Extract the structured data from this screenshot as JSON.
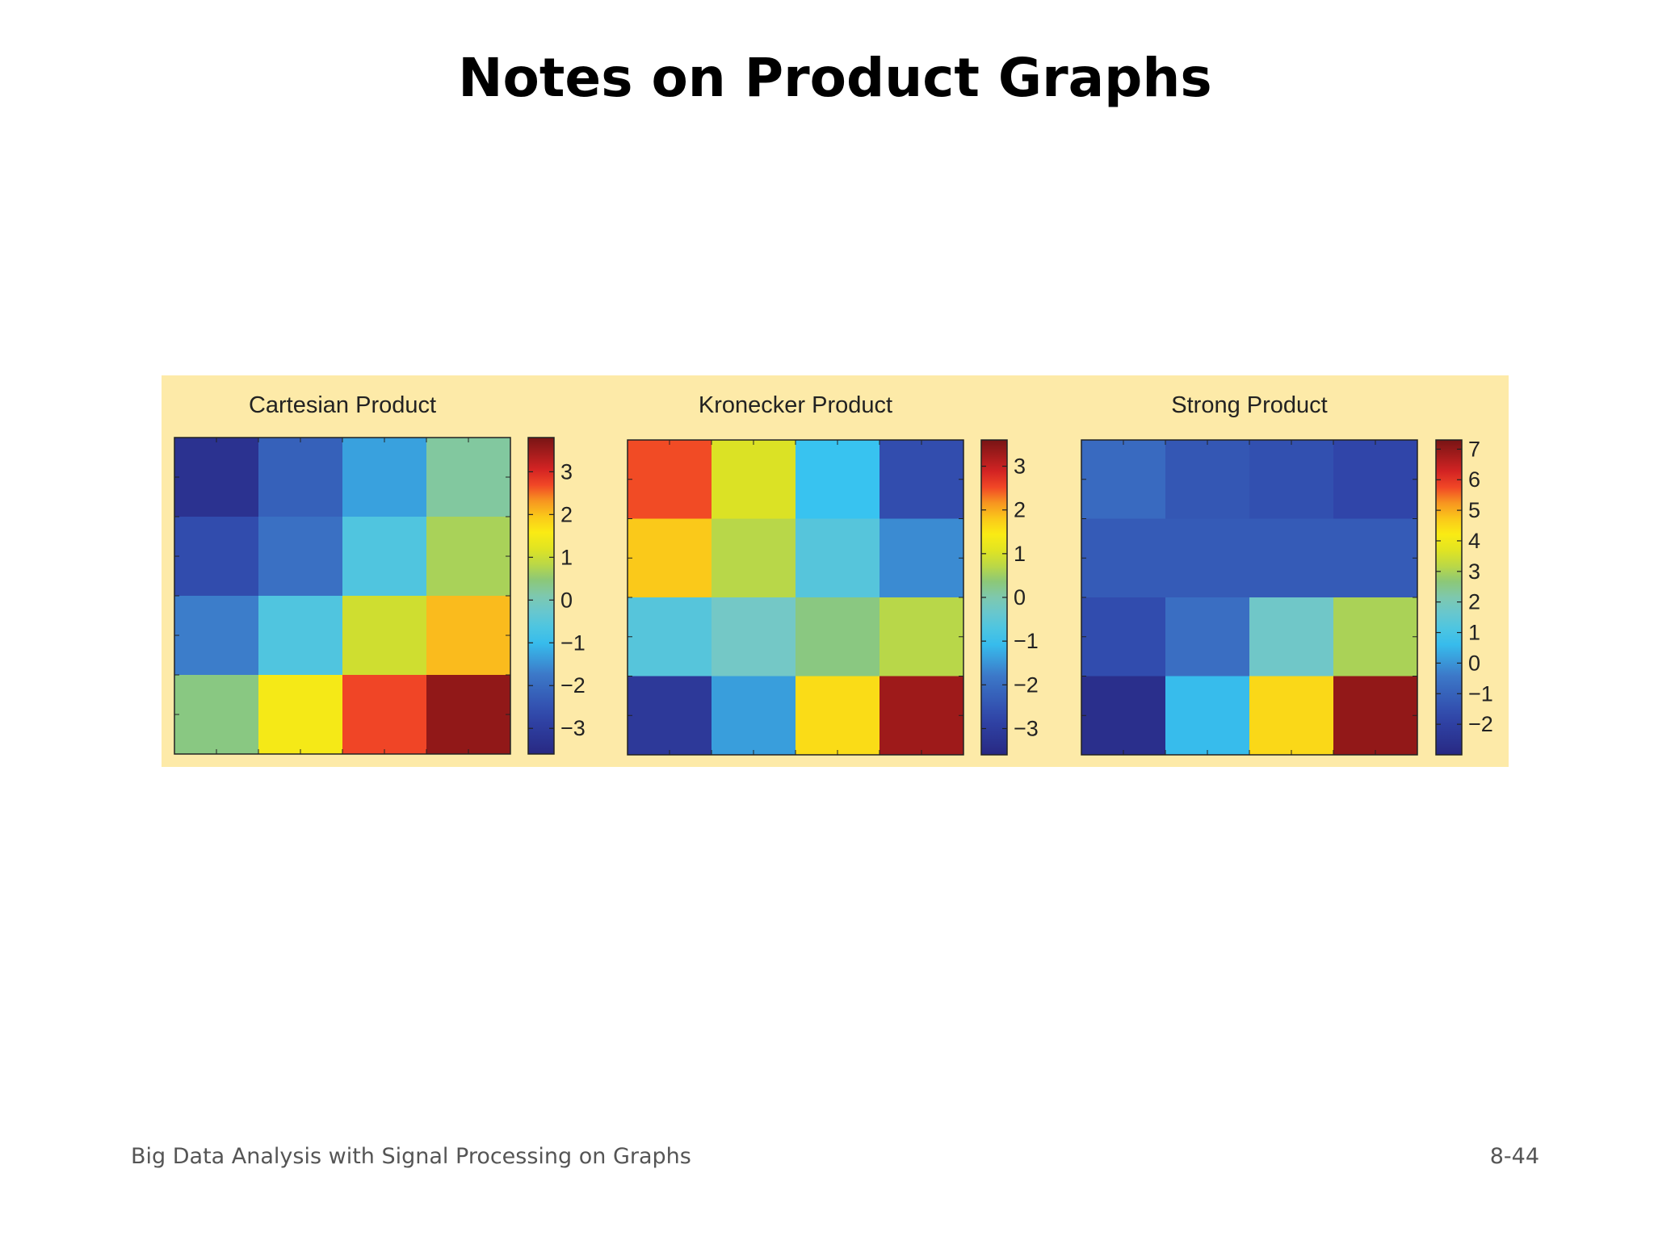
{
  "slide": {
    "title": "Notes on Product Graphs",
    "footer_left": "Big Data Analysis with Signal Processing on Graphs",
    "footer_right": "8-44"
  },
  "chart_data": [
    {
      "type": "heatmap",
      "title": "Cartesian Product",
      "colormap": "jet",
      "clim": [
        -3.6,
        3.8
      ],
      "colorbar_ticks": [
        3,
        2,
        1,
        0,
        -1,
        -2,
        -3
      ],
      "colorbar_tick_labels": [
        "3",
        "2",
        "1",
        "0",
        "−1",
        "−2",
        "−3"
      ],
      "values": [
        [
          -3.3,
          -2.2,
          -1.3,
          0.2
        ],
        [
          -2.6,
          -1.9,
          -0.6,
          0.7
        ],
        [
          -1.7,
          -0.6,
          1.0,
          2.1
        ],
        [
          0.4,
          1.5,
          2.7,
          3.6
        ]
      ]
    },
    {
      "type": "heatmap",
      "title": "Kronecker Product",
      "colormap": "jet",
      "clim": [
        -3.6,
        3.6
      ],
      "colorbar_ticks": [
        3,
        2,
        1,
        0,
        -1,
        -2,
        -3
      ],
      "colorbar_tick_labels": [
        "3",
        "2",
        "1",
        "0",
        "−1",
        "−2",
        "−3"
      ],
      "values": [
        [
          2.5,
          1.0,
          -1.0,
          -2.6
        ],
        [
          1.8,
          0.7,
          -0.6,
          -1.6
        ],
        [
          -0.6,
          -0.2,
          0.3,
          0.7
        ],
        [
          -3.1,
          -1.4,
          1.6,
          3.3
        ]
      ]
    },
    {
      "type": "heatmap",
      "title": "Strong Product",
      "colormap": "jet",
      "clim": [
        -3.0,
        7.3
      ],
      "colorbar_ticks": [
        7,
        6,
        5,
        4,
        3,
        2,
        1,
        0,
        -1,
        -2
      ],
      "colorbar_tick_labels": [
        "7",
        "6",
        "5",
        "4",
        "3",
        "2",
        "1",
        "0",
        "−1",
        "−2"
      ],
      "values": [
        [
          -0.8,
          -1.3,
          -1.5,
          -1.8
        ],
        [
          -1.2,
          -1.2,
          -1.2,
          -1.2
        ],
        [
          -1.6,
          -0.7,
          1.8,
          3.0
        ],
        [
          -2.7,
          0.6,
          4.5,
          7.0
        ]
      ]
    }
  ]
}
